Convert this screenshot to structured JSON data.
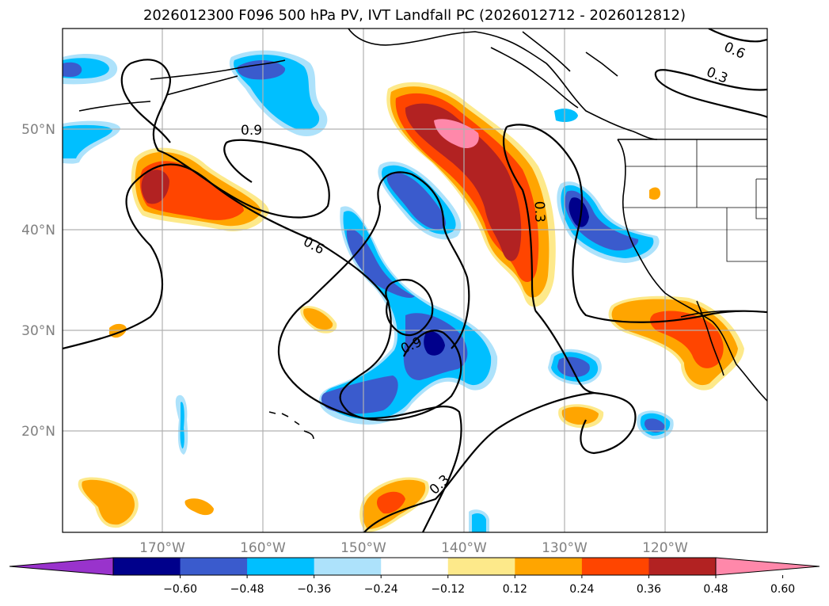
{
  "title": "2026012300 F096 500 hPa PV, IVT Landfall PC (2026012712 - 2026012812)",
  "longitude_labels": [
    "170°W",
    "160°W",
    "150°W",
    "140°W",
    "130°W",
    "120°W"
  ],
  "latitude_labels": [
    "20°N",
    "30°N",
    "40°N",
    "50°N"
  ],
  "contour_labels": [
    "0.9",
    "0.6",
    "0.3",
    "0.3",
    "0.9",
    "0.3",
    "0.6",
    "0.3"
  ],
  "colorbar": {
    "tick_labels": [
      "−0.60",
      "−0.48",
      "−0.36",
      "−0.24",
      "−0.12",
      "0.12",
      "0.24",
      "0.36",
      "0.48",
      "0.60"
    ],
    "colors": [
      "#9933cc",
      "#00008b",
      "#3a5bcd",
      "#00bfff",
      "#ade2fb",
      "#ffffff",
      "#fde98a",
      "#ffa500",
      "#ff4500",
      "#b22222",
      "#ff88aa"
    ]
  },
  "colors": {
    "grid": "#b0b0b0",
    "tick_text": "#808080",
    "coast": "#000000"
  }
}
